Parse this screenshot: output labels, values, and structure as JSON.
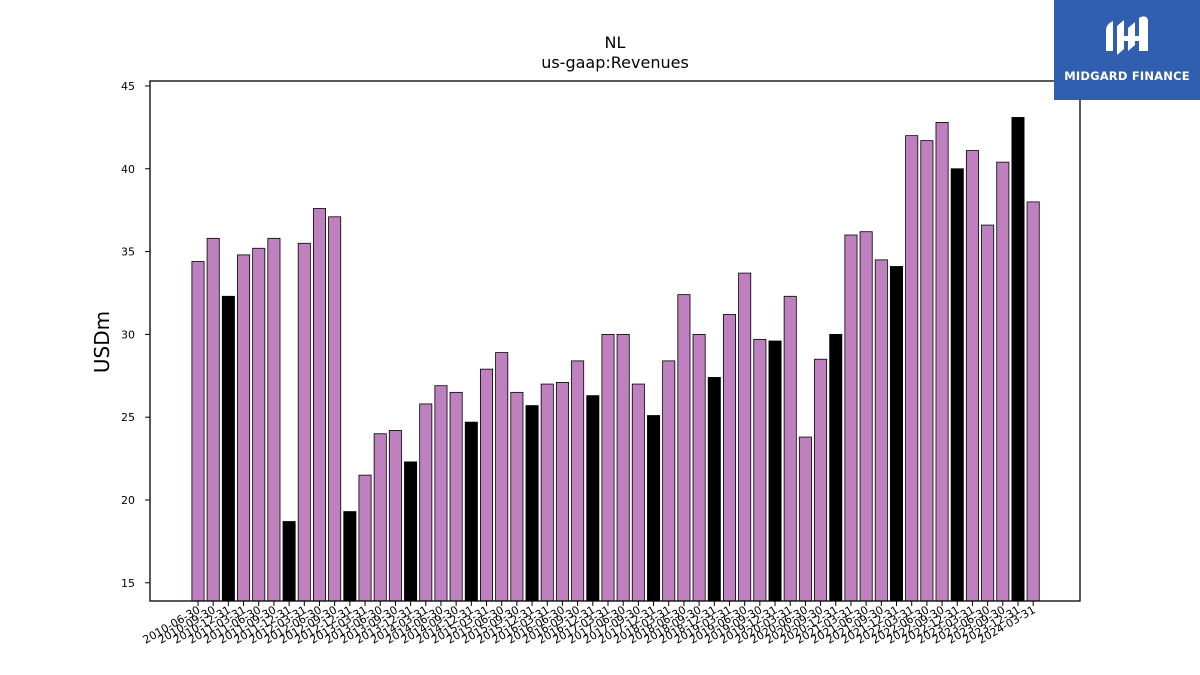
{
  "brand": {
    "name": "MIDGARD FINANCE",
    "bg_color": "#2f5fae"
  },
  "chart_data": {
    "type": "bar",
    "title": "NL",
    "subtitle": "us-gaap:Revenues",
    "xlabel": "",
    "ylabel": "USDm",
    "ylim": [
      13.9,
      45.3
    ],
    "yticks": [
      15,
      20,
      25,
      30,
      35,
      40,
      45
    ],
    "grid": false,
    "colors": {
      "quarter": "#bf80bf",
      "year_end": "#000000",
      "edge": "#000000"
    },
    "categories": [
      "2010-06-30",
      "2010-09-30",
      "2010-12-31",
      "2011-03-31",
      "2011-06-30",
      "2011-09-30",
      "2011-12-31",
      "2012-03-31",
      "2012-06-30",
      "2012-09-30",
      "2012-12-31",
      "2013-03-31",
      "2013-06-30",
      "2013-09-30",
      "2013-12-31",
      "2014-03-31",
      "2014-06-30",
      "2014-09-30",
      "2014-12-31",
      "2015-03-31",
      "2015-06-30",
      "2015-09-30",
      "2015-12-31",
      "2016-03-31",
      "2016-06-30",
      "2016-09-30",
      "2016-12-31",
      "2017-03-31",
      "2017-06-30",
      "2017-09-30",
      "2017-12-31",
      "2018-03-31",
      "2018-06-30",
      "2018-09-30",
      "2018-12-31",
      "2019-03-31",
      "2019-06-30",
      "2019-09-30",
      "2019-12-31",
      "2020-03-31",
      "2020-06-30",
      "2020-09-30",
      "2020-12-31",
      "2021-03-31",
      "2021-06-30",
      "2021-09-30",
      "2021-12-31",
      "2022-03-31",
      "2022-06-30",
      "2022-09-30",
      "2022-12-31",
      "2023-03-31",
      "2023-06-30",
      "2023-09-30",
      "2023-12-31",
      "2024-03-31"
    ],
    "values": [
      34.4,
      35.8,
      32.3,
      34.8,
      35.2,
      35.8,
      18.7,
      35.5,
      37.6,
      37.1,
      19.3,
      21.5,
      24.0,
      24.2,
      22.3,
      25.8,
      26.9,
      26.5,
      24.7,
      27.9,
      28.9,
      26.5,
      25.7,
      27.0,
      27.1,
      28.4,
      26.3,
      30.0,
      30.0,
      27.0,
      25.1,
      28.4,
      32.4,
      30.0,
      27.4,
      31.2,
      33.7,
      29.7,
      29.6,
      32.3,
      23.8,
      28.5,
      30.0,
      36.0,
      36.2,
      34.5,
      34.1,
      42.0,
      41.7,
      42.8,
      40.0,
      41.1,
      36.6,
      40.4,
      43.1,
      38.0
    ]
  }
}
